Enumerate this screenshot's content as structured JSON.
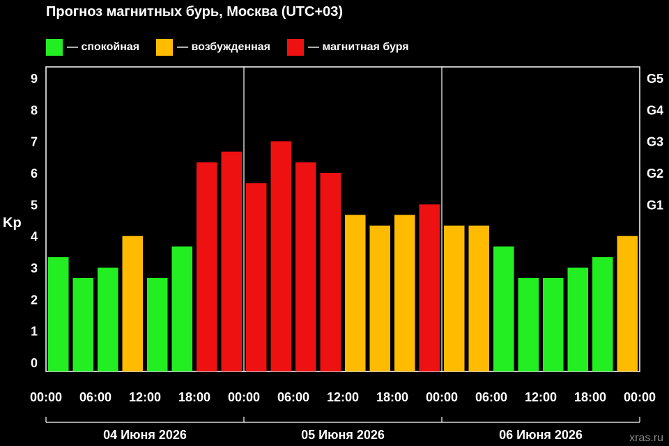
{
  "chart_data": {
    "type": "bar",
    "title": "Прогноз магнитных бурь, Москва (UTC+03)",
    "ylabel": "Kp",
    "ylim": [
      0,
      9
    ],
    "y_ticks": [
      0,
      1,
      2,
      3,
      4,
      5,
      6,
      7,
      8,
      9
    ],
    "right_axis_labels": [
      {
        "kp": 5,
        "label": "G1"
      },
      {
        "kp": 6,
        "label": "G2"
      },
      {
        "kp": 7,
        "label": "G3"
      },
      {
        "kp": 8,
        "label": "G4"
      },
      {
        "kp": 9,
        "label": "G5"
      }
    ],
    "legend": [
      {
        "label": "— спокойная",
        "color": "#22ee22"
      },
      {
        "label": "— возбужденная",
        "color": "#ffbb00"
      },
      {
        "label": "— магнитная буря",
        "color": "#ee1111"
      }
    ],
    "x_tick_labels": [
      "00:00",
      "06:00",
      "12:00",
      "18:00",
      "00:00",
      "06:00",
      "12:00",
      "18:00",
      "00:00",
      "06:00",
      "12:00",
      "18:00",
      "00:00"
    ],
    "days": [
      "04 Июня 2026",
      "05 Июня 2026",
      "06 Июня 2026"
    ],
    "values": [
      3.33,
      2.67,
      3,
      4,
      2.67,
      3.67,
      6.33,
      6.67,
      5.67,
      7,
      6.33,
      6,
      4.67,
      4.33,
      4.67,
      5,
      4.33,
      4.33,
      3.67,
      2.67,
      2.67,
      3,
      3.33,
      4
    ],
    "levels": [
      "quiet",
      "quiet",
      "quiet",
      "active",
      "quiet",
      "quiet",
      "storm",
      "storm",
      "storm",
      "storm",
      "storm",
      "storm",
      "active",
      "active",
      "active",
      "storm",
      "active",
      "active",
      "quiet",
      "quiet",
      "quiet",
      "quiet",
      "quiet",
      "active"
    ],
    "colors": {
      "quiet": "#22ee22",
      "active": "#ffbb00",
      "storm": "#ee1111"
    },
    "grid": false
  },
  "watermark": "xras.ru"
}
